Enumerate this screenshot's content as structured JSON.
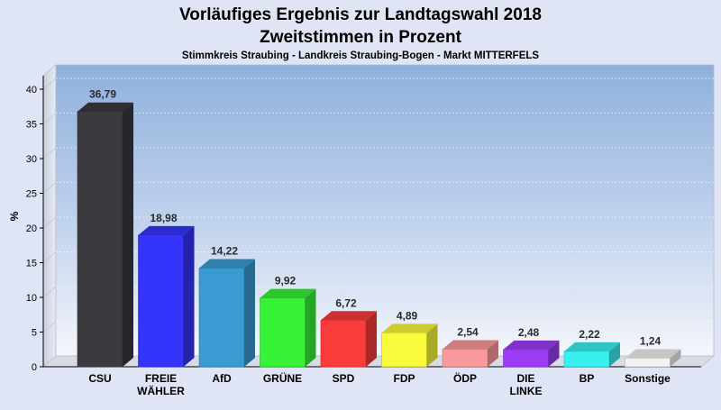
{
  "chart_data": {
    "type": "bar",
    "title": "Vorläufiges Ergebnis zur Landtagswahl 2018",
    "subtitle": "Zweitstimmen in Prozent",
    "caption": "Stimmkreis Straubing - Landkreis Straubing-Bogen - Markt MITTERFELS",
    "xlabel": "",
    "ylabel": "%",
    "ylim": [
      0,
      40
    ],
    "yticks": [
      "0",
      "5",
      "10",
      "15",
      "20",
      "25",
      "30",
      "35",
      "40"
    ],
    "categories": [
      [
        "CSU"
      ],
      [
        "FREIE",
        "WÄHLER"
      ],
      [
        "AfD"
      ],
      [
        "GRÜNE"
      ],
      [
        "SPD"
      ],
      [
        "FDP"
      ],
      [
        "ÖDP"
      ],
      [
        "DIE",
        "LINKE"
      ],
      [
        "BP"
      ],
      [
        "Sonstige"
      ]
    ],
    "values": [
      36.79,
      18.98,
      14.22,
      9.92,
      6.72,
      4.89,
      2.54,
      2.48,
      2.22,
      1.24
    ],
    "value_labels": [
      "36,79",
      "18,98",
      "14,22",
      "9,92",
      "6,72",
      "4,89",
      "2,54",
      "2,48",
      "2,22",
      "1,24"
    ],
    "colors": [
      "#3a3a3f",
      "#3434fb",
      "#3a9bd3",
      "#37f237",
      "#fa3b3b",
      "#fafa3c",
      "#fb9a9a",
      "#9c3cf5",
      "#39f0f0",
      "#f2f2f2"
    ],
    "grid": true,
    "legend": "none"
  }
}
